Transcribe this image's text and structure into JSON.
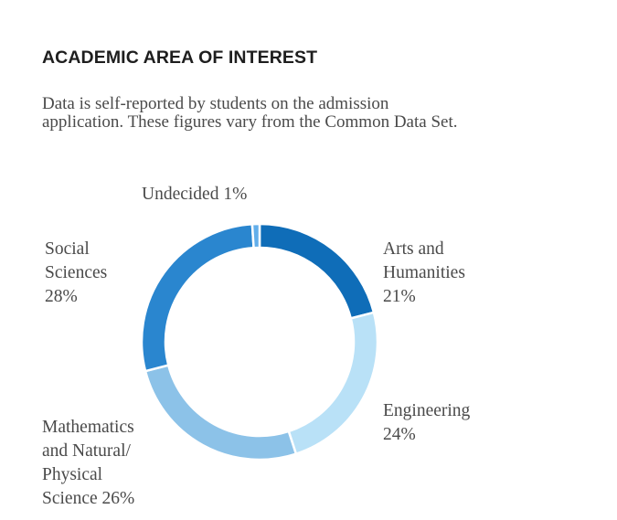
{
  "chart_data": {
    "type": "pie",
    "title": "ACADEMIC AREA OF INTEREST",
    "subtitle_lines": [
      "Data is self-reported by students on the admission",
      "application. These figures vary from the Common Data Set."
    ],
    "slices": [
      {
        "key": "arts",
        "value": 21,
        "color": "#0f6db8",
        "label_lines": [
          "Arts and",
          "Humanities",
          "21%"
        ]
      },
      {
        "key": "engineering",
        "value": 24,
        "color": "#b9e1f7",
        "label_lines": [
          "Engineering",
          "24%"
        ]
      },
      {
        "key": "math",
        "value": 26,
        "color": "#8cc2e8",
        "label_lines": [
          "Mathematics",
          "and Natural/",
          "Physical",
          "Science 26%"
        ]
      },
      {
        "key": "social",
        "value": 28,
        "color": "#2a86cf",
        "label_lines": [
          "Social",
          "Sciences",
          "28%"
        ]
      },
      {
        "key": "undecided",
        "value": 1,
        "color": "#62aeea",
        "label_lines": [
          "Undecided 1%"
        ]
      }
    ],
    "start_angle_deg": 0,
    "direction": "clockwise"
  }
}
